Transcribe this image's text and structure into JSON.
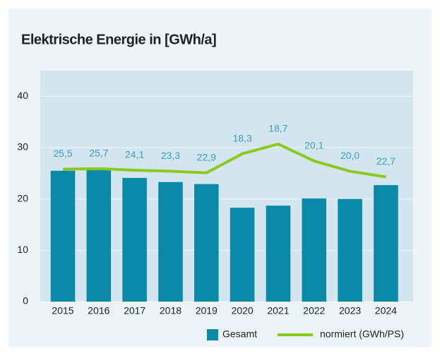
{
  "chart_data": {
    "type": "bar",
    "title": "Elektrische Energie in [GWh/a]",
    "categories": [
      "2015",
      "2016",
      "2017",
      "2018",
      "2019",
      "2020",
      "2021",
      "2022",
      "2023",
      "2024"
    ],
    "series": [
      {
        "name": "Gesamt",
        "type": "bar",
        "color": "#0a8aa8",
        "values": [
          25.5,
          25.7,
          24.1,
          23.3,
          22.9,
          18.3,
          18.7,
          20.1,
          20.0,
          22.7
        ],
        "value_labels": [
          "25,5",
          "25,7",
          "24,1",
          "23,3",
          "22,9",
          "18,3",
          "18,7",
          "20,1",
          "20,0",
          "22,7"
        ]
      },
      {
        "name": "normiert (GWh/PS)",
        "type": "line",
        "color": "#8cc91e",
        "values": [
          25.8,
          25.9,
          25.6,
          25.4,
          25.1,
          28.8,
          30.7,
          27.4,
          25.4,
          24.3
        ]
      }
    ],
    "ylim": [
      0,
      45
    ],
    "yticks": [
      0,
      10,
      20,
      30,
      40
    ],
    "grid": true,
    "legend": "bottom"
  }
}
